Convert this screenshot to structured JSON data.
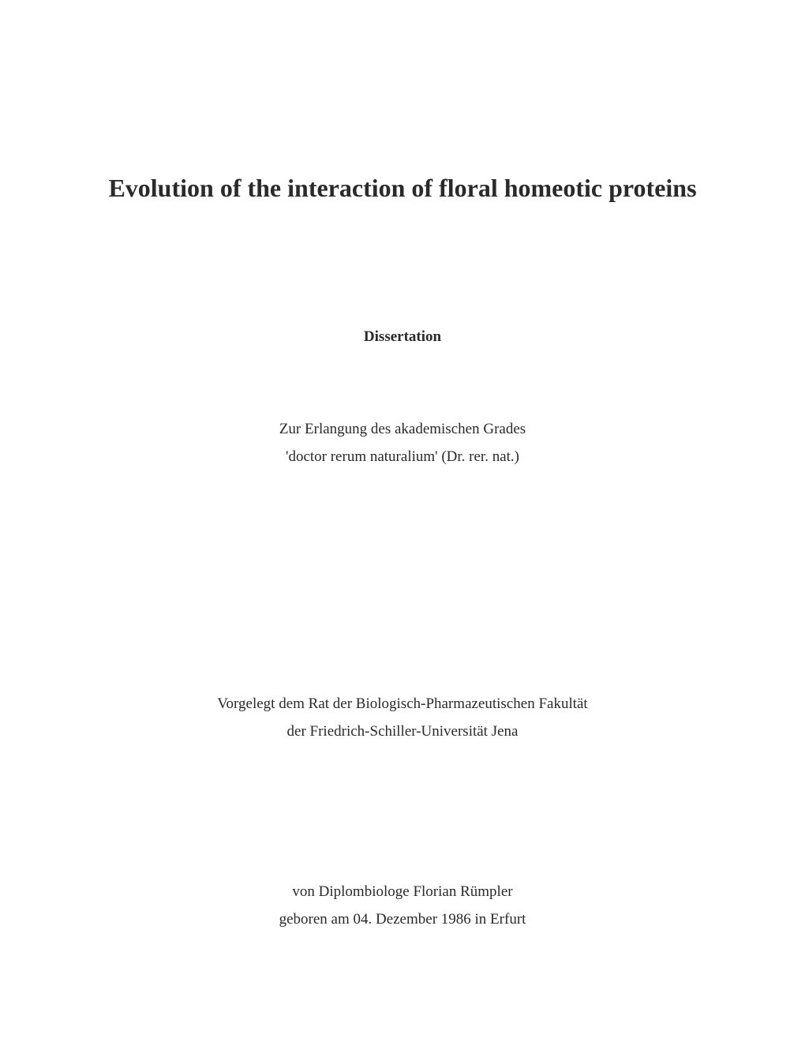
{
  "title": "Evolution of the interaction of floral homeotic proteins",
  "dissertation_label": "Dissertation",
  "degree": {
    "line1": "Zur Erlangung des akademischen Grades",
    "line2": "'doctor rerum naturalium' (Dr. rer. nat.)"
  },
  "faculty": {
    "line1": "Vorgelegt dem Rat der Biologisch-Pharmazeutischen Fakultät",
    "line2": "der Friedrich-Schiller-Universität Jena"
  },
  "author": {
    "line1": "von Diplombiologe Florian Rümpler",
    "line2": "geboren am 04. Dezember 1986 in Erfurt"
  }
}
